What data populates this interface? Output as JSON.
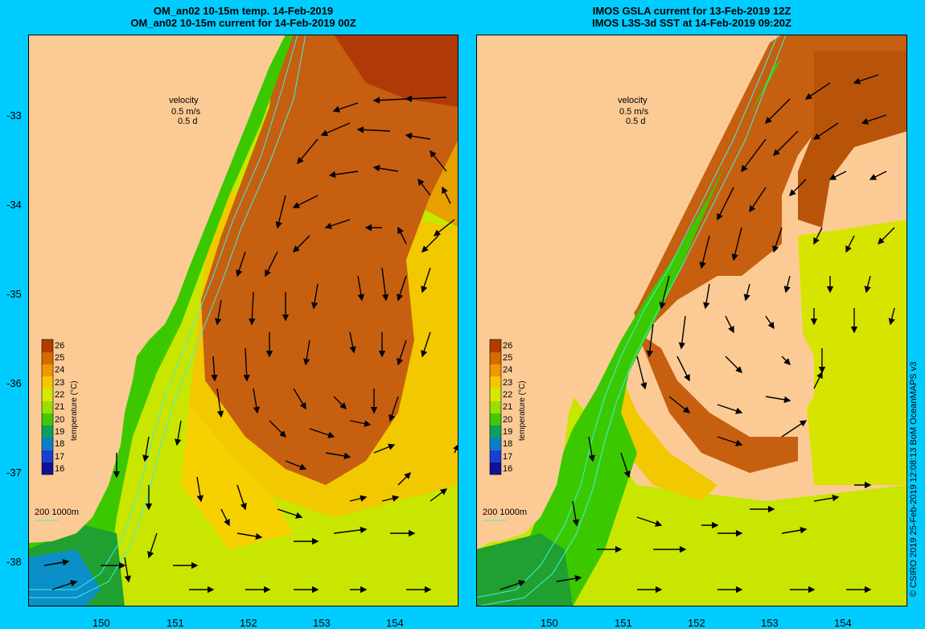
{
  "left_panel": {
    "title_line1": "OM_an02 10-15m temp. 14-Feb-2019",
    "title_line2": "OM_an02 10-15m current for 14-Feb-2019 00Z"
  },
  "right_panel": {
    "title_line1": "IMOS GSLA current for 13-Feb-2019 12Z",
    "title_line2": "IMOS L3S-3d SST at 14-Feb-2019 09:20Z"
  },
  "velocity_legend": {
    "label": "velocity",
    "speed": "0.5 m/s",
    "time": "0.5 d"
  },
  "depth_legend": {
    "text": "200  1000m"
  },
  "colorbar": {
    "title": "temperature (°C)",
    "ticks": [
      "26",
      "25",
      "24",
      "23",
      "22",
      "21",
      "20",
      "19",
      "18",
      "17",
      "16"
    ],
    "colors": [
      "#b23c00",
      "#d46a00",
      "#ec9a00",
      "#f7c500",
      "#d9e600",
      "#9adf00",
      "#45c800",
      "#0aa060",
      "#0a7fc8",
      "#1a3fd0",
      "#10109a"
    ]
  },
  "axes": {
    "y_ticks": [
      "-33",
      "-34",
      "-35",
      "-36",
      "-37",
      "-38"
    ],
    "x_ticks": [
      "150",
      "151",
      "152",
      "153",
      "154"
    ]
  },
  "credit": "© CSIRO 2019  25-Feb-2019 12:08:13 BoM OceanMAPS v3",
  "colors": {
    "background": "#00ccff",
    "land": "#fccb95",
    "warm_core": "#c65f10",
    "isobath": "#40f0e0"
  }
}
